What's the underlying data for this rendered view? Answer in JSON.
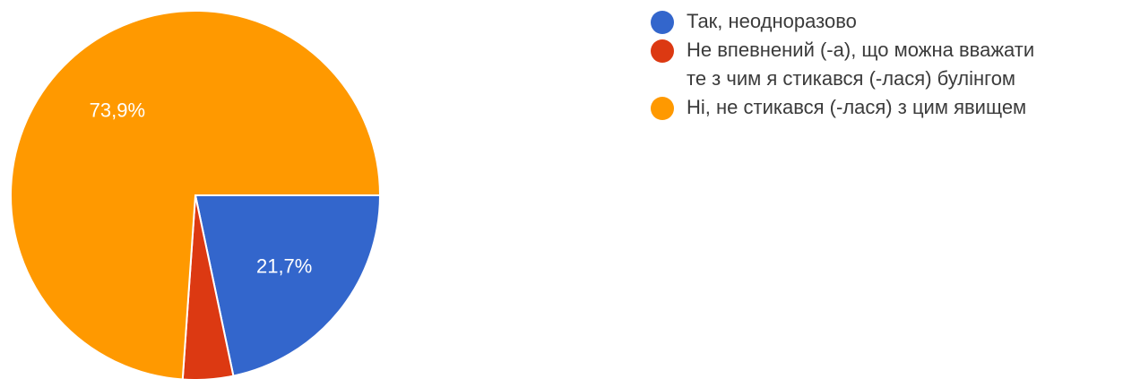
{
  "chart_data": {
    "type": "pie",
    "slices": [
      {
        "label": "Так, неодноразово",
        "value": 21.7,
        "display": "21,7%",
        "color": "#3366cc"
      },
      {
        "label": "Не впевнений (-а), що можна вважати\nте з чим я стикався (-лася) булінгом",
        "value": 4.4,
        "display": "",
        "color": "#dc3912"
      },
      {
        "label": "Ні, не стикався (-лася) з цим явищем",
        "value": 73.9,
        "display": "73,9%",
        "color": "#ff9900"
      }
    ],
    "start_angle": "90 degrees clockwise from top (3 o'clock)",
    "direction": "clockwise",
    "legend_position": "right"
  }
}
